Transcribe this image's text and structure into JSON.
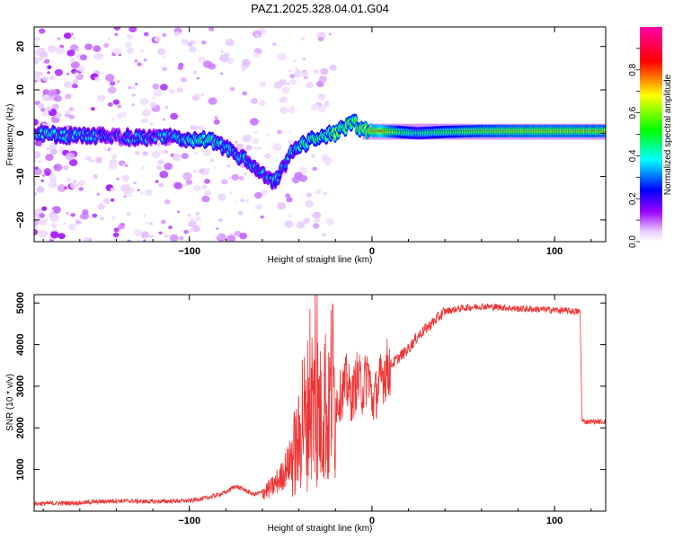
{
  "title": "PAZ1.2025.328.04.01.G04",
  "chart_data": [
    {
      "type": "heatmap",
      "name": "spectrogram",
      "xlabel": "Height of straight line (km)",
      "ylabel": "Frequency (Hz)",
      "xlim": [
        -185,
        128
      ],
      "ylim": [
        -25,
        24.5
      ],
      "xticks": [
        -100,
        0,
        100
      ],
      "yticks": [
        -20,
        -10,
        0,
        10,
        20
      ],
      "colorbar": {
        "label": "Normalized spectral amplitude",
        "range": [
          0,
          1
        ],
        "ticks": [
          0.0,
          0.2,
          0.4,
          0.6,
          0.8
        ],
        "colormap": [
          "#ffffff",
          "#cc00ff",
          "#0000ff",
          "#00ffff",
          "#00ff00",
          "#ffff00",
          "#ff0000",
          "#ff00aa"
        ]
      },
      "ridge": [
        {
          "x": -185,
          "f": 0.0,
          "a": 0.35
        },
        {
          "x": -170,
          "f": -0.5,
          "a": 0.38
        },
        {
          "x": -150,
          "f": -0.5,
          "a": 0.3
        },
        {
          "x": -130,
          "f": -1.0,
          "a": 0.3
        },
        {
          "x": -110,
          "f": -1.0,
          "a": 0.35
        },
        {
          "x": -100,
          "f": -1.5,
          "a": 0.42
        },
        {
          "x": -90,
          "f": -1.5,
          "a": 0.45
        },
        {
          "x": -80,
          "f": -3.5,
          "a": 0.4
        },
        {
          "x": -70,
          "f": -6.0,
          "a": 0.38
        },
        {
          "x": -62,
          "f": -9.0,
          "a": 0.35
        },
        {
          "x": -53,
          "f": -11.5,
          "a": 0.33
        },
        {
          "x": -45,
          "f": -5.0,
          "a": 0.38
        },
        {
          "x": -38,
          "f": -2.5,
          "a": 0.45
        },
        {
          "x": -30,
          "f": -1.0,
          "a": 0.5
        },
        {
          "x": -20,
          "f": 0.0,
          "a": 0.55
        },
        {
          "x": -10,
          "f": 2.5,
          "a": 0.6
        },
        {
          "x": -5,
          "f": 0.5,
          "a": 0.62
        },
        {
          "x": 0,
          "f": 0.5,
          "a": 0.7
        },
        {
          "x": 5,
          "f": 0.5,
          "a": 0.78
        },
        {
          "x": 15,
          "f": 0.3,
          "a": 0.55
        },
        {
          "x": 25,
          "f": 0.0,
          "a": 0.45
        },
        {
          "x": 40,
          "f": 0.3,
          "a": 0.55
        },
        {
          "x": 60,
          "f": 0.5,
          "a": 0.62
        },
        {
          "x": 80,
          "f": 0.5,
          "a": 0.66
        },
        {
          "x": 100,
          "f": 0.5,
          "a": 0.66
        },
        {
          "x": 128,
          "f": 0.5,
          "a": 0.66
        }
      ]
    },
    {
      "type": "line",
      "name": "snr",
      "xlabel": "Height of straight line (km)",
      "ylabel": "SNR (10 * v/v)",
      "xlim": [
        -185,
        128
      ],
      "ylim": [
        0,
        5200
      ],
      "xticks": [
        -100,
        0,
        100
      ],
      "yticks": [
        1000,
        2000,
        3000,
        4000,
        5000
      ],
      "color": "#ee3333",
      "series": [
        {
          "name": "SNR",
          "x": [
            -185,
            -160,
            -140,
            -120,
            -100,
            -90,
            -80,
            -75,
            -70,
            -65,
            -60,
            -55,
            -50,
            -45,
            -40,
            -38,
            -36,
            -34,
            -32,
            -30,
            -28,
            -26,
            -24,
            -22,
            -20,
            -17,
            -14,
            -11,
            -8,
            -5,
            -2,
            0,
            3,
            6,
            10,
            15,
            20,
            25,
            30,
            35,
            40,
            50,
            60,
            70,
            80,
            90,
            100,
            110,
            114,
            115,
            116,
            120,
            128
          ],
          "y": [
            180,
            200,
            250,
            230,
            250,
            320,
            450,
            600,
            520,
            400,
            450,
            560,
            800,
            1200,
            1600,
            2400,
            2000,
            3000,
            2400,
            2600,
            2200,
            2800,
            2000,
            3200,
            2600,
            2800,
            3100,
            2700,
            3200,
            2900,
            3400,
            2600,
            2900,
            3300,
            3500,
            3700,
            3900,
            4200,
            4400,
            4600,
            4800,
            4880,
            4920,
            4900,
            4860,
            4850,
            4830,
            4800,
            4790,
            2200,
            2150,
            2150,
            2150
          ]
        }
      ]
    }
  ]
}
